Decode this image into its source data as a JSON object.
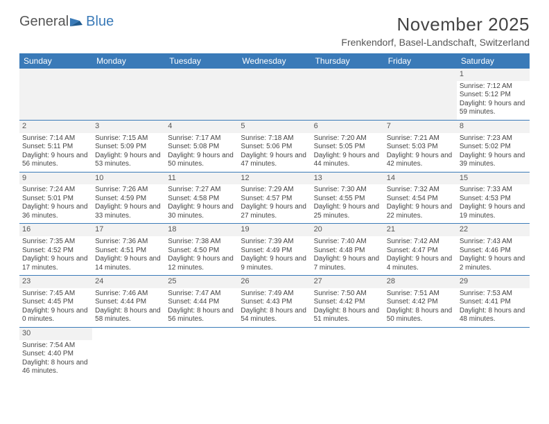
{
  "logo": {
    "part1": "General",
    "part2": "Blue"
  },
  "title": "November 2025",
  "location": "Frenkendorf, Basel-Landschaft, Switzerland",
  "colors": {
    "header_bg": "#3a7ab8",
    "header_text": "#ffffff",
    "daynum_bg": "#f2f2f2",
    "border": "#3a7ab8",
    "text": "#444444"
  },
  "day_headers": [
    "Sunday",
    "Monday",
    "Tuesday",
    "Wednesday",
    "Thursday",
    "Friday",
    "Saturday"
  ],
  "weeks": [
    [
      null,
      null,
      null,
      null,
      null,
      null,
      {
        "n": "1",
        "sr": "7:12 AM",
        "ss": "5:12 PM",
        "dl": "9 hours and 59 minutes."
      }
    ],
    [
      {
        "n": "2",
        "sr": "7:14 AM",
        "ss": "5:11 PM",
        "dl": "9 hours and 56 minutes."
      },
      {
        "n": "3",
        "sr": "7:15 AM",
        "ss": "5:09 PM",
        "dl": "9 hours and 53 minutes."
      },
      {
        "n": "4",
        "sr": "7:17 AM",
        "ss": "5:08 PM",
        "dl": "9 hours and 50 minutes."
      },
      {
        "n": "5",
        "sr": "7:18 AM",
        "ss": "5:06 PM",
        "dl": "9 hours and 47 minutes."
      },
      {
        "n": "6",
        "sr": "7:20 AM",
        "ss": "5:05 PM",
        "dl": "9 hours and 44 minutes."
      },
      {
        "n": "7",
        "sr": "7:21 AM",
        "ss": "5:03 PM",
        "dl": "9 hours and 42 minutes."
      },
      {
        "n": "8",
        "sr": "7:23 AM",
        "ss": "5:02 PM",
        "dl": "9 hours and 39 minutes."
      }
    ],
    [
      {
        "n": "9",
        "sr": "7:24 AM",
        "ss": "5:01 PM",
        "dl": "9 hours and 36 minutes."
      },
      {
        "n": "10",
        "sr": "7:26 AM",
        "ss": "4:59 PM",
        "dl": "9 hours and 33 minutes."
      },
      {
        "n": "11",
        "sr": "7:27 AM",
        "ss": "4:58 PM",
        "dl": "9 hours and 30 minutes."
      },
      {
        "n": "12",
        "sr": "7:29 AM",
        "ss": "4:57 PM",
        "dl": "9 hours and 27 minutes."
      },
      {
        "n": "13",
        "sr": "7:30 AM",
        "ss": "4:55 PM",
        "dl": "9 hours and 25 minutes."
      },
      {
        "n": "14",
        "sr": "7:32 AM",
        "ss": "4:54 PM",
        "dl": "9 hours and 22 minutes."
      },
      {
        "n": "15",
        "sr": "7:33 AM",
        "ss": "4:53 PM",
        "dl": "9 hours and 19 minutes."
      }
    ],
    [
      {
        "n": "16",
        "sr": "7:35 AM",
        "ss": "4:52 PM",
        "dl": "9 hours and 17 minutes."
      },
      {
        "n": "17",
        "sr": "7:36 AM",
        "ss": "4:51 PM",
        "dl": "9 hours and 14 minutes."
      },
      {
        "n": "18",
        "sr": "7:38 AM",
        "ss": "4:50 PM",
        "dl": "9 hours and 12 minutes."
      },
      {
        "n": "19",
        "sr": "7:39 AM",
        "ss": "4:49 PM",
        "dl": "9 hours and 9 minutes."
      },
      {
        "n": "20",
        "sr": "7:40 AM",
        "ss": "4:48 PM",
        "dl": "9 hours and 7 minutes."
      },
      {
        "n": "21",
        "sr": "7:42 AM",
        "ss": "4:47 PM",
        "dl": "9 hours and 4 minutes."
      },
      {
        "n": "22",
        "sr": "7:43 AM",
        "ss": "4:46 PM",
        "dl": "9 hours and 2 minutes."
      }
    ],
    [
      {
        "n": "23",
        "sr": "7:45 AM",
        "ss": "4:45 PM",
        "dl": "9 hours and 0 minutes."
      },
      {
        "n": "24",
        "sr": "7:46 AM",
        "ss": "4:44 PM",
        "dl": "8 hours and 58 minutes."
      },
      {
        "n": "25",
        "sr": "7:47 AM",
        "ss": "4:44 PM",
        "dl": "8 hours and 56 minutes."
      },
      {
        "n": "26",
        "sr": "7:49 AM",
        "ss": "4:43 PM",
        "dl": "8 hours and 54 minutes."
      },
      {
        "n": "27",
        "sr": "7:50 AM",
        "ss": "4:42 PM",
        "dl": "8 hours and 51 minutes."
      },
      {
        "n": "28",
        "sr": "7:51 AM",
        "ss": "4:42 PM",
        "dl": "8 hours and 50 minutes."
      },
      {
        "n": "29",
        "sr": "7:53 AM",
        "ss": "4:41 PM",
        "dl": "8 hours and 48 minutes."
      }
    ],
    [
      {
        "n": "30",
        "sr": "7:54 AM",
        "ss": "4:40 PM",
        "dl": "8 hours and 46 minutes."
      },
      null,
      null,
      null,
      null,
      null,
      null
    ]
  ],
  "labels": {
    "sunrise": "Sunrise: ",
    "sunset": "Sunset: ",
    "daylight": "Daylight: "
  }
}
